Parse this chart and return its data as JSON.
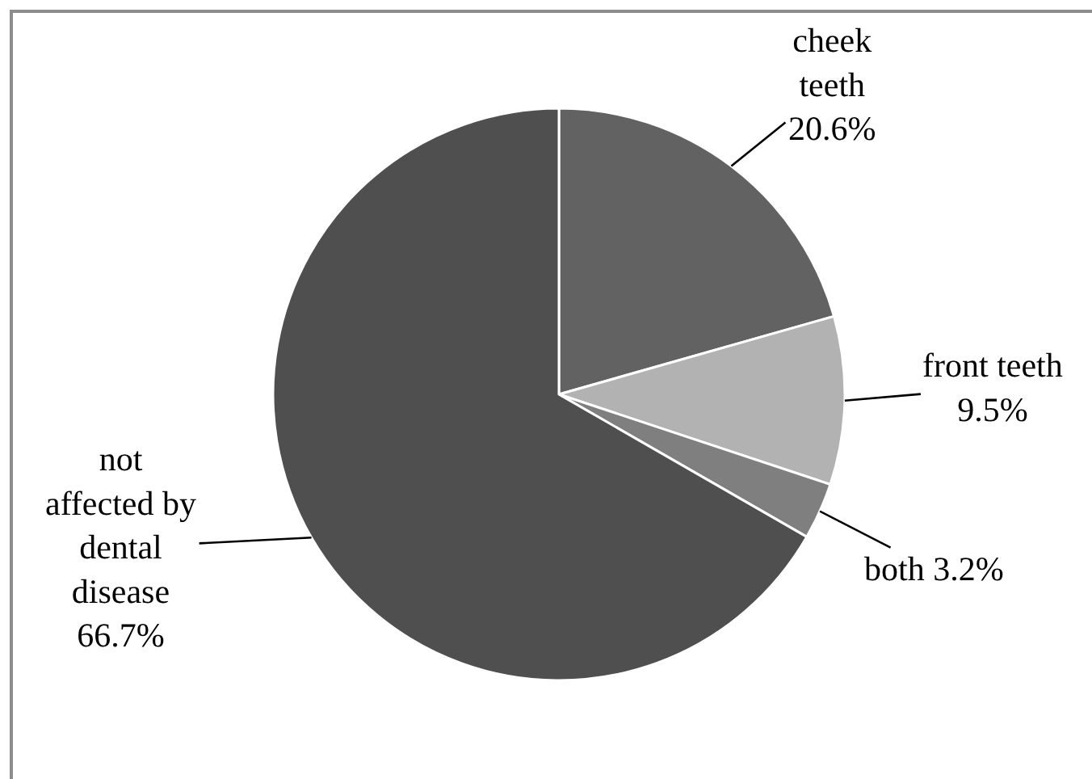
{
  "chart_data": {
    "type": "pie",
    "categories": [
      "cheek teeth",
      "front teeth",
      "both",
      "not affected by dental disease"
    ],
    "values": [
      20.6,
      9.5,
      3.2,
      66.7
    ],
    "colors": [
      "#626262",
      "#b2b2b2",
      "#7f7f7f",
      "#4f4f4f"
    ],
    "value_labels": [
      "20.6%",
      "9.5%",
      "3.2%",
      "66.7%"
    ]
  }
}
